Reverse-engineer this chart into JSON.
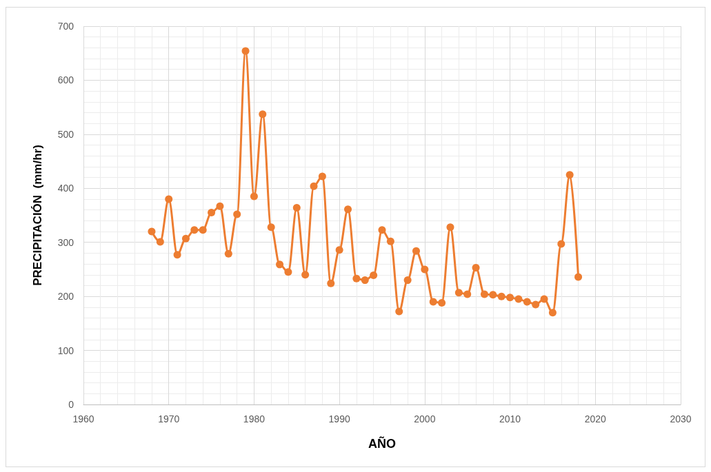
{
  "chart_data": {
    "type": "line",
    "xlabel": "AÑO",
    "ylabel": "PRECIPITACIÓN  (mm/hr)",
    "x": [
      1968,
      1969,
      1970,
      1971,
      1972,
      1973,
      1974,
      1975,
      1976,
      1977,
      1978,
      1979,
      1980,
      1981,
      1982,
      1983,
      1984,
      1985,
      1986,
      1987,
      1988,
      1989,
      1990,
      1991,
      1992,
      1993,
      1994,
      1995,
      1996,
      1997,
      1998,
      1999,
      2000,
      2001,
      2002,
      2003,
      2004,
      2005,
      2006,
      2007,
      2008,
      2009,
      2010,
      2011,
      2012,
      2013,
      2014,
      2015,
      2016,
      2017,
      2018
    ],
    "series": [
      {
        "color": "#ed7d31",
        "values": [
          320,
          301,
          380,
          277,
          307,
          323,
          323,
          355,
          367,
          279,
          352,
          654,
          385,
          537,
          328,
          259,
          245,
          364,
          240,
          404,
          422,
          224,
          286,
          361,
          233,
          230,
          239,
          323,
          302,
          172,
          230,
          284,
          250,
          190,
          188,
          328,
          207,
          204,
          253,
          204,
          203,
          200,
          198,
          195,
          190,
          185,
          195,
          170,
          297,
          425,
          236
        ]
      }
    ],
    "xlim": [
      1960,
      2030
    ],
    "xticks": [
      1960,
      1970,
      1980,
      1990,
      2000,
      2010,
      2020,
      2030
    ],
    "ylim": [
      0,
      700
    ],
    "yticks": [
      0,
      100,
      200,
      300,
      400,
      500,
      600,
      700
    ],
    "grid": true,
    "marker": "circle",
    "line_style": "solid"
  }
}
